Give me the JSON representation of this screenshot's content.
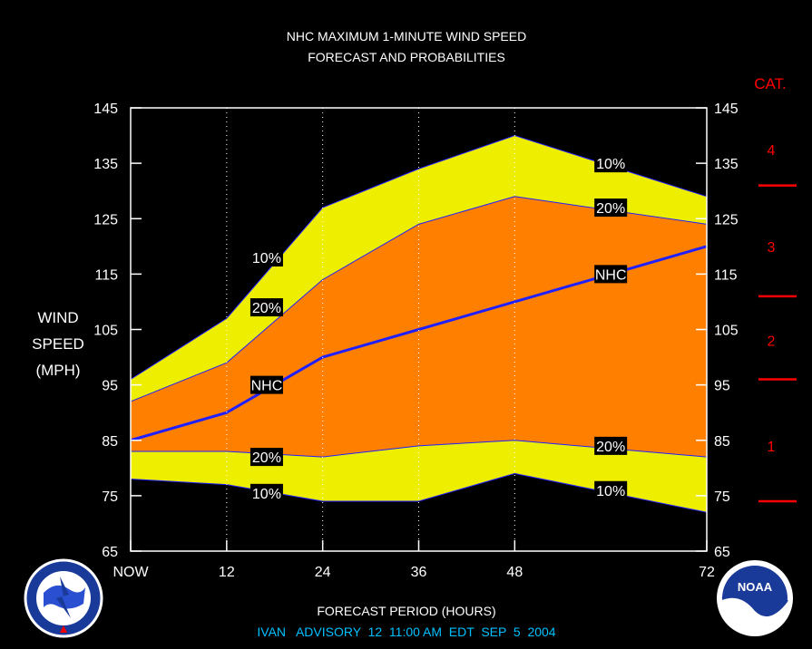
{
  "chart_data": {
    "type": "area",
    "title": "NHC MAXIMUM 1-MINUTE WIND SPEED",
    "subtitle": "FORECAST AND PROBABILITIES",
    "ylabel_lines": [
      "WIND",
      "SPEED",
      "(MPH)"
    ],
    "xlabel": "FORECAST PERIOD (HOURS)",
    "advisory": "IVAN   ADVISORY  12  11:00 AM  EDT  SEP  5  2004",
    "ylim": [
      65,
      145
    ],
    "yticks": [
      65,
      75,
      85,
      95,
      105,
      115,
      125,
      135,
      145
    ],
    "xlim": [
      0,
      72
    ],
    "x_ticks": [
      {
        "x": 0,
        "label": "NOW"
      },
      {
        "x": 12,
        "label": "12"
      },
      {
        "x": 24,
        "label": "24"
      },
      {
        "x": 36,
        "label": "36"
      },
      {
        "x": 48,
        "label": "48"
      },
      {
        "x": 72,
        "label": "72"
      }
    ],
    "x": [
      0,
      12,
      24,
      36,
      48,
      72
    ],
    "series": [
      {
        "name": "10%",
        "role": "upper10",
        "values": [
          96,
          107,
          127,
          134,
          140,
          129
        ]
      },
      {
        "name": "20%",
        "role": "upper20",
        "values": [
          92,
          99,
          114,
          124,
          129,
          124
        ]
      },
      {
        "name": "NHC",
        "role": "nhc",
        "values": [
          85,
          90,
          100,
          105,
          110,
          120
        ]
      },
      {
        "name": "20%",
        "role": "lower20",
        "values": [
          83,
          83,
          82,
          84,
          85,
          82
        ]
      },
      {
        "name": "10%",
        "role": "lower10",
        "values": [
          78,
          77,
          74,
          74,
          79,
          72
        ]
      }
    ],
    "series_labels": [
      {
        "text": "10%",
        "x": 17,
        "y": 118
      },
      {
        "text": "20%",
        "x": 17,
        "y": 109
      },
      {
        "text": "NHC",
        "x": 17,
        "y": 95
      },
      {
        "text": "20%",
        "x": 17,
        "y": 82
      },
      {
        "text": "10%",
        "x": 17,
        "y": 75.5
      },
      {
        "text": "10%",
        "x": 60,
        "y": 135
      },
      {
        "text": "20%",
        "x": 60,
        "y": 127
      },
      {
        "text": "NHC",
        "x": 60,
        "y": 115
      },
      {
        "text": "20%",
        "x": 60,
        "y": 84
      },
      {
        "text": "10%",
        "x": 60,
        "y": 76
      }
    ],
    "category_header": "CAT.",
    "categories": [
      {
        "label": "4",
        "y": 137.5
      },
      {
        "label": "3",
        "y": 120
      },
      {
        "label": "2",
        "y": 103
      },
      {
        "label": "1",
        "y": 84
      }
    ],
    "category_thresholds": [
      74,
      96,
      111,
      131
    ],
    "grid": false,
    "colors": {
      "band10": "#eeee00",
      "band20": "#ff8000",
      "nhc_line": "#2020ff",
      "category": "#ff0000",
      "advisory": "#00c0ff",
      "background": "#000000",
      "label_box": "#000000"
    }
  },
  "logos": {
    "left": {
      "icon": "nws-logo",
      "text": "NATIONAL WEATHER SERVICE"
    },
    "right": {
      "icon": "noaa-logo",
      "text": "NOAA"
    }
  }
}
